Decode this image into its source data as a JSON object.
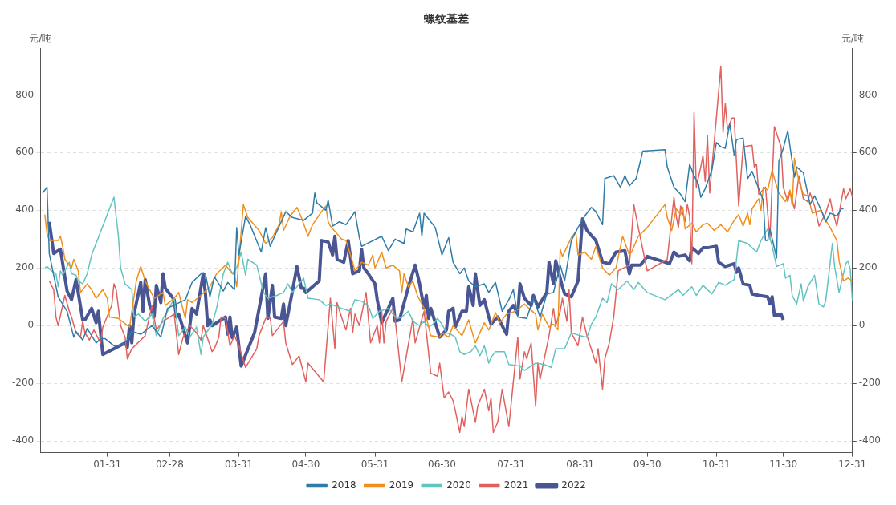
{
  "chart_data": {
    "type": "line",
    "title": "螺纹基差",
    "ylabel": "元/吨",
    "y2label": "元/吨",
    "xlim": [
      "--01-01",
      "--12-31"
    ],
    "xticks": [
      {
        "value": "--01-31",
        "label": "01-31"
      },
      {
        "value": "--02-28",
        "label": "02-28"
      },
      {
        "value": "--03-31",
        "label": "03-31"
      },
      {
        "value": "--04-30",
        "label": "04-30"
      },
      {
        "value": "--05-31",
        "label": "05-31"
      },
      {
        "value": "--06-30",
        "label": "06-30"
      },
      {
        "value": "--07-31",
        "label": "07-31"
      },
      {
        "value": "--08-31",
        "label": "08-31"
      },
      {
        "value": "--09-30",
        "label": "09-30"
      },
      {
        "value": "--10-31",
        "label": "10-31"
      },
      {
        "value": "--11-30",
        "label": "11-30"
      },
      {
        "value": "--12-31",
        "label": "12-31"
      }
    ],
    "ylim": [
      -440,
      960
    ],
    "yticks": [
      -400,
      -200,
      0,
      200,
      400,
      600,
      800
    ],
    "y2lim": [
      -440,
      960
    ],
    "y2ticks": [
      -400,
      -200,
      0,
      200,
      400,
      600,
      800
    ],
    "grid": "y",
    "legend": "bottom",
    "series": [
      {
        "name": "2018",
        "color": "#2f7ca8",
        "x": [
          "--01-02",
          "--01-04",
          "--01-05",
          "--01-09",
          "--01-13",
          "--01-16",
          "--01-17",
          "--01-20",
          "--01-22",
          "--01-26",
          "--01-28",
          "--01-30",
          "--02-03",
          "--02-06",
          "--02-09",
          "--02-11",
          "--02-15",
          "--02-20",
          "--02-24",
          "--02-27",
          "--03-07",
          "--03-10",
          "--03-14",
          "--03-16",
          "--03-18",
          "--03-20",
          "--03-24",
          "--03-26",
          "--03-29",
          "--03-30",
          "--03-31",
          "--04-03",
          "--04-05",
          "--04-10",
          "--04-12",
          "--04-14",
          "--04-21",
          "--04-24",
          "--04-29",
          "--05-03",
          "--05-04",
          "--05-05",
          "--05-09",
          "--05-10",
          "--05-12",
          "--05-15",
          "--05-18",
          "--05-22",
          "--05-24",
          "--05-25",
          "--06-03",
          "--06-06",
          "--06-09",
          "--06-13",
          "--06-14",
          "--06-17",
          "--06-20",
          "--06-21",
          "--06-22",
          "--06-27",
          "--06-30",
          "--07-03",
          "--07-05",
          "--07-08",
          "--07-10",
          "--07-12",
          "--07-15",
          "--07-19",
          "--07-21",
          "--07-24",
          "--07-27",
          "--07-30",
          "--08-01",
          "--08-03",
          "--08-07",
          "--08-10",
          "--08-13",
          "--08-16",
          "--08-19",
          "--08-22",
          "--08-24",
          "--08-27",
          "--08-30",
          "--09-02",
          "--09-05",
          "--09-07",
          "--09-10",
          "--09-11",
          "--09-15",
          "--09-18",
          "--09-20",
          "--09-22",
          "--09-25",
          "--09-26",
          "--09-28",
          "--10-08",
          "--10-09",
          "--10-12",
          "--10-15",
          "--10-17",
          "--10-19",
          "--10-21",
          "--10-23",
          "--10-24",
          "--10-26",
          "--10-29",
          "--10-31",
          "--11-02",
          "--11-04",
          "--11-06",
          "--11-08",
          "--11-09",
          "--11-12",
          "--11-14",
          "--11-16",
          "--11-21",
          "--11-22",
          "--11-23",
          "--11-24",
          "--11-27",
          "--11-28",
          "--11-30",
          "--12-02",
          "--12-05",
          "--12-06",
          "--12-09",
          "--12-12",
          "--12-14",
          "--12-17",
          "--12-19",
          "--12-21",
          "--12-24",
          "--12-26",
          "--12-27"
        ],
        "values": [
          460,
          480,
          250,
          100,
          50,
          -40,
          -20,
          -50,
          -10,
          -60,
          -45,
          -45,
          -70,
          -70,
          -50,
          -20,
          -30,
          0,
          -40,
          60,
          90,
          150,
          180,
          180,
          100,
          170,
          120,
          150,
          125,
          340,
          245,
          380,
          350,
          255,
          340,
          275,
          395,
          375,
          365,
          390,
          460,
          425,
          400,
          435,
          345,
          360,
          350,
          395,
          305,
          275,
          310,
          260,
          300,
          285,
          335,
          325,
          390,
          310,
          390,
          340,
          245,
          305,
          220,
          180,
          200,
          155,
          135,
          145,
          115,
          150,
          50,
          90,
          125,
          30,
          25,
          95,
          30,
          110,
          115,
          210,
          155,
          295,
          340,
          380,
          410,
          395,
          350,
          510,
          520,
          480,
          520,
          485,
          510,
          540,
          605,
          610,
          550,
          480,
          455,
          430,
          560,
          520,
          490,
          445,
          475,
          540,
          635,
          620,
          615,
          700,
          590,
          645,
          650,
          510,
          535,
          435,
          295,
          295,
          335,
          235,
          570,
          615,
          675,
          515,
          550,
          530,
          420,
          450,
          400,
          360,
          390,
          380,
          405,
          405
        ]
      },
      {
        "name": "2019",
        "color": "#f0901c",
        "x": [
          "--01-03",
          "--01-04",
          "--01-05",
          "--01-09",
          "--01-10",
          "--01-11",
          "--01-12",
          "--01-15",
          "--01-16",
          "--01-18",
          "--01-19",
          "--01-22",
          "--01-24",
          "--01-26",
          "--01-29",
          "--01-31",
          "--02-01",
          "--02-05",
          "--02-10",
          "--02-13",
          "--02-15",
          "--02-17",
          "--02-21",
          "--02-25",
          "--02-26",
          "--03-02",
          "--03-04",
          "--03-07",
          "--03-08",
          "--03-10",
          "--03-14",
          "--03-18",
          "--03-21",
          "--03-25",
          "--03-27",
          "--03-29",
          "--03-30",
          "--04-02",
          "--04-04",
          "--04-09",
          "--04-12",
          "--04-15",
          "--04-18",
          "--04-19",
          "--04-20",
          "--04-23",
          "--04-26",
          "--04-28",
          "--05-01",
          "--05-03",
          "--05-07",
          "--05-09",
          "--05-10",
          "--05-11",
          "--05-16",
          "--05-18",
          "--05-21",
          "--05-22",
          "--05-25",
          "--05-28",
          "--05-30",
          "--05-31",
          "--06-03",
          "--06-05",
          "--06-08",
          "--06-11",
          "--06-12",
          "--06-13",
          "--06-15",
          "--06-17",
          "--06-19",
          "--06-22",
          "--06-25",
          "--06-29",
          "--06-30",
          "--07-03",
          "--07-05",
          "--07-09",
          "--07-12",
          "--07-14",
          "--07-15",
          "--07-19",
          "--07-21",
          "--07-24",
          "--07-26",
          "--07-29",
          "--08-02",
          "--08-06",
          "--08-08",
          "--08-11",
          "--08-12",
          "--08-14",
          "--08-17",
          "--08-19",
          "--08-21",
          "--08-22",
          "--08-23",
          "--08-27",
          "--08-29",
          "--08-30",
          "--09-02",
          "--09-05",
          "--09-07",
          "--09-10",
          "--09-13",
          "--09-16",
          "--09-19",
          "--09-22",
          "--09-23",
          "--09-26",
          "--09-30",
          "--10-08",
          "--10-09",
          "--10-11",
          "--10-13",
          "--10-15",
          "--10-16",
          "--10-17",
          "--10-20",
          "--10-22",
          "--10-25",
          "--10-27",
          "--10-30",
          "--11-02",
          "--11-05",
          "--11-08",
          "--11-10",
          "--11-12",
          "--11-14",
          "--11-15",
          "--11-16",
          "--11-19",
          "--11-20",
          "--11-21",
          "--11-23",
          "--11-25",
          "--11-26",
          "--11-28",
          "--12-01",
          "--12-03",
          "--12-04",
          "--12-05",
          "--12-07",
          "--12-09",
          "--12-11",
          "--12-13",
          "--12-17",
          "--12-19",
          "--12-21",
          "--12-24",
          "--12-25",
          "--12-27",
          "--12-29",
          "--12-31"
        ],
        "values": [
          385,
          320,
          295,
          295,
          310,
          275,
          230,
          200,
          230,
          190,
          115,
          145,
          125,
          95,
          125,
          95,
          30,
          25,
          -5,
          155,
          205,
          155,
          95,
          115,
          70,
          95,
          115,
          25,
          90,
          80,
          105,
          135,
          180,
          210,
          190,
          175,
          135,
          420,
          375,
          330,
          285,
          305,
          350,
          395,
          330,
          380,
          410,
          375,
          310,
          350,
          395,
          415,
          360,
          345,
          300,
          295,
          220,
          190,
          220,
          210,
          245,
          200,
          255,
          200,
          210,
          190,
          115,
          180,
          135,
          155,
          105,
          60,
          -35,
          -40,
          -25,
          -40,
          0,
          -35,
          20,
          -35,
          -60,
          10,
          -15,
          45,
          10,
          40,
          50,
          75,
          60,
          40,
          -15,
          40,
          -5,
          5,
          -15,
          265,
          240,
          305,
          325,
          245,
          255,
          230,
          275,
          200,
          175,
          200,
          310,
          245,
          255,
          310,
          340,
          420,
          375,
          330,
          405,
          385,
          410,
          335,
          355,
          325,
          350,
          355,
          330,
          350,
          325,
          365,
          385,
          345,
          390,
          350,
          405,
          440,
          400,
          480,
          470,
          540,
          510,
          460,
          430,
          470,
          415,
          580,
          500,
          455,
          450,
          390,
          400,
          365,
          340,
          295,
          225,
          155,
          165,
          155
        ]
      },
      {
        "name": "2020",
        "color": "#62c4c0",
        "x": [
          "--01-03",
          "--01-04",
          "--01-06",
          "--01-08",
          "--01-09",
          "--01-10",
          "--01-11",
          "--01-14",
          "--01-15",
          "--01-17",
          "--01-18",
          "--01-20",
          "--01-22",
          "--01-24",
          "--02-03",
          "--02-05",
          "--02-06",
          "--02-08",
          "--02-11",
          "--02-12",
          "--02-14",
          "--02-17",
          "--02-20",
          "--02-22",
          "--02-25",
          "--02-27",
          "--03-02",
          "--03-04",
          "--03-07",
          "--03-09",
          "--03-12",
          "--03-14",
          "--03-15",
          "--03-19",
          "--03-21",
          "--03-24",
          "--03-26",
          "--03-28",
          "--03-30",
          "--04-01",
          "--04-03",
          "--04-04",
          "--04-08",
          "--04-11",
          "--04-13",
          "--04-17",
          "--04-20",
          "--04-22",
          "--04-24",
          "--04-29",
          "--05-01",
          "--05-06",
          "--05-09",
          "--05-11",
          "--05-16",
          "--05-20",
          "--05-22",
          "--05-25",
          "--05-28",
          "--05-30",
          "--06-02",
          "--06-06",
          "--06-08",
          "--06-10",
          "--06-12",
          "--06-15",
          "--06-17",
          "--06-20",
          "--06-22",
          "--06-24",
          "--06-26",
          "--06-28",
          "--06-30",
          "--07-02",
          "--07-04",
          "--07-06",
          "--07-08",
          "--07-10",
          "--07-13",
          "--07-15",
          "--07-17",
          "--07-19",
          "--07-21",
          "--07-22",
          "--07-24",
          "--07-28",
          "--07-30",
          "--08-04",
          "--08-06",
          "--08-09",
          "--08-11",
          "--08-15",
          "--08-18",
          "--08-20",
          "--08-24",
          "--08-27",
          "--08-31",
          "--09-03",
          "--09-05",
          "--09-07",
          "--09-10",
          "--09-12",
          "--09-14",
          "--09-17",
          "--09-21",
          "--09-24",
          "--09-26",
          "--09-30",
          "--10-08",
          "--10-14",
          "--10-16",
          "--10-20",
          "--10-22",
          "--10-25",
          "--10-29",
          "--11-01",
          "--11-04",
          "--11-08",
          "--11-10",
          "--11-14",
          "--11-16",
          "--11-18",
          "--11-20",
          "--11-23",
          "--11-25",
          "--11-27",
          "--11-30",
          "--12-01",
          "--12-03",
          "--12-04",
          "--12-06",
          "--12-08",
          "--12-09",
          "--12-11",
          "--12-14",
          "--12-16",
          "--12-18",
          "--12-19",
          "--12-22",
          "--12-23",
          "--12-25",
          "--12-28",
          "--12-29",
          "--12-30",
          "--12-31"
        ],
        "values": [
          200,
          205,
          190,
          180,
          135,
          190,
          175,
          220,
          180,
          175,
          155,
          145,
          180,
          245,
          445,
          310,
          200,
          145,
          125,
          30,
          40,
          15,
          40,
          -35,
          25,
          50,
          95,
          -35,
          -5,
          -40,
          -5,
          -100,
          -40,
          5,
          60,
          180,
          220,
          180,
          200,
          255,
          175,
          230,
          210,
          115,
          95,
          105,
          115,
          145,
          115,
          165,
          95,
          90,
          70,
          75,
          60,
          50,
          90,
          85,
          70,
          25,
          50,
          60,
          40,
          25,
          30,
          50,
          15,
          0,
          15,
          -5,
          5,
          25,
          5,
          -25,
          -30,
          -40,
          -90,
          -100,
          -90,
          -70,
          -105,
          -70,
          -130,
          -110,
          -90,
          -90,
          -135,
          -140,
          -155,
          -140,
          -130,
          -135,
          -145,
          -80,
          -80,
          -25,
          -35,
          -40,
          5,
          30,
          95,
          80,
          145,
          125,
          155,
          125,
          150,
          115,
          90,
          125,
          105,
          135,
          105,
          140,
          110,
          150,
          140,
          160,
          295,
          285,
          270,
          255,
          295,
          335,
          275,
          205,
          215,
          165,
          175,
          105,
          75,
          145,
          85,
          135,
          175,
          75,
          65,
          85,
          285,
          205,
          115,
          215,
          225,
          195,
          85
        ]
      },
      {
        "name": "2021",
        "color": "#e0615e",
        "x": [
          "--01-05",
          "--01-07",
          "--01-08",
          "--01-09",
          "--01-11",
          "--01-12",
          "--01-14",
          "--01-15",
          "--01-17",
          "--01-19",
          "--01-20",
          "--01-21",
          "--01-23",
          "--01-25",
          "--01-28",
          "--01-29",
          "--02-02",
          "--02-03",
          "--02-04",
          "--02-06",
          "--02-08",
          "--02-09",
          "--02-11",
          "--02-17",
          "--02-20",
          "--02-22",
          "--02-25",
          "--03-02",
          "--03-04",
          "--03-05",
          "--03-06",
          "--03-09",
          "--03-12",
          "--03-14",
          "--03-15",
          "--03-19",
          "--03-20",
          "--03-22",
          "--03-23",
          "--03-25",
          "--03-27",
          "--03-29",
          "--03-31",
          "--04-03",
          "--04-08",
          "--04-09",
          "--04-12",
          "--04-14",
          "--04-15",
          "--04-17",
          "--04-20",
          "--04-21",
          "--04-24",
          "--04-27",
          "--04-28",
          "--04-30",
          "--05-01",
          "--05-08",
          "--05-11",
          "--05-13",
          "--05-14",
          "--05-16",
          "--05-18",
          "--05-20",
          "--05-21",
          "--05-22",
          "--05-24",
          "--05-27",
          "--05-29",
          "--06-01",
          "--06-02",
          "--06-03",
          "--06-04",
          "--06-05",
          "--06-08",
          "--06-09",
          "--06-12",
          "--06-17",
          "--06-18",
          "--06-22",
          "--06-25",
          "--06-28",
          "--06-29",
          "--07-01",
          "--07-03",
          "--07-05",
          "--07-06",
          "--07-08",
          "--07-09",
          "--07-10",
          "--07-12",
          "--07-15",
          "--07-16",
          "--07-19",
          "--07-21",
          "--07-22",
          "--07-23",
          "--07-25",
          "--07-27",
          "--07-30",
          "--08-03",
          "--08-04",
          "--08-06",
          "--08-07",
          "--08-09",
          "--08-11",
          "--08-12",
          "--08-13",
          "--08-17",
          "--08-19",
          "--08-20",
          "--08-22",
          "--08-23",
          "--08-25",
          "--08-26",
          "--08-27",
          "--08-30",
          "--09-01",
          "--09-03",
          "--09-07",
          "--09-08",
          "--09-10",
          "--09-11",
          "--09-13",
          "--09-15",
          "--09-17",
          "--09-22",
          "--09-24",
          "--09-26",
          "--09-30",
          "--10-09",
          "--10-12",
          "--10-13",
          "--10-14",
          "--10-15",
          "--10-17",
          "--10-18",
          "--10-19",
          "--10-20",
          "--10-21",
          "--10-22",
          "--10-24",
          "--10-25",
          "--10-26",
          "--10-27",
          "--10-28",
          "--10-29",
          "--10-31",
          "--11-02",
          "--11-03",
          "--11-04",
          "--11-05",
          "--11-07",
          "--11-08",
          "--11-10",
          "--11-12",
          "--11-16",
          "--11-17",
          "--11-18",
          "--11-19",
          "--11-22",
          "--11-24",
          "--11-26",
          "--11-29",
          "--11-30",
          "--12-02",
          "--12-03",
          "--12-05",
          "--12-07",
          "--12-09",
          "--12-11",
          "--12-12",
          "--12-14",
          "--12-16",
          "--12-19",
          "--12-21",
          "--12-22",
          "--12-24",
          "--12-27",
          "--12-28",
          "--12-30",
          "--12-31"
        ],
        "values": [
          155,
          125,
          30,
          0,
          70,
          105,
          50,
          30,
          -25,
          -40,
          15,
          -25,
          -50,
          -15,
          -60,
          -5,
          70,
          145,
          125,
          0,
          -40,
          -115,
          -80,
          -35,
          70,
          -15,
          15,
          40,
          -100,
          -70,
          -40,
          0,
          -25,
          -50,
          0,
          -90,
          -80,
          -40,
          30,
          25,
          -70,
          -35,
          -70,
          -145,
          -80,
          -35,
          25,
          30,
          -35,
          -15,
          15,
          -60,
          -135,
          -105,
          -135,
          -195,
          -130,
          -195,
          95,
          -80,
          80,
          30,
          -15,
          60,
          -25,
          40,
          0,
          115,
          -60,
          0,
          -60,
          50,
          -60,
          15,
          60,
          25,
          -195,
          25,
          -60,
          50,
          -165,
          -175,
          -130,
          -250,
          -230,
          -260,
          -295,
          -370,
          -315,
          -350,
          -220,
          -335,
          -280,
          -220,
          -295,
          -250,
          -370,
          -335,
          -220,
          -350,
          -40,
          -185,
          -90,
          -115,
          -60,
          -280,
          -130,
          -185,
          -35,
          60,
          0,
          50,
          95,
          15,
          125,
          -25,
          -70,
          30,
          -35,
          -130,
          -80,
          -220,
          -115,
          -60,
          30,
          190,
          210,
          420,
          340,
          190,
          230,
          445,
          380,
          340,
          415,
          360,
          420,
          380,
          215,
          740,
          480,
          550,
          590,
          500,
          660,
          460,
          550,
          720,
          900,
          670,
          770,
          680,
          720,
          720,
          415,
          620,
          625,
          550,
          560,
          455,
          480,
          300,
          690,
          620,
          480,
          430,
          465,
          405,
          520,
          440,
          430,
          460,
          415,
          345,
          390,
          440,
          400,
          345,
          475,
          440,
          475,
          445
        ]
      },
      {
        "name": "2022",
        "color": "#4a5694",
        "x": [
          "--01-05",
          "--01-07",
          "--01-10",
          "--01-13",
          "--01-15",
          "--01-17",
          "--01-20",
          "--01-21",
          "--01-24",
          "--01-26",
          "--01-27",
          "--01-29",
          "--02-08",
          "--02-09",
          "--02-10",
          "--02-11",
          "--02-12",
          "--02-15",
          "--02-16",
          "--02-17",
          "--02-19",
          "--02-21",
          "--02-22",
          "--02-24",
          "--02-25",
          "--02-26",
          "--03-02",
          "--03-03",
          "--03-04",
          "--03-08",
          "--03-10",
          "--03-12",
          "--03-15",
          "--03-16",
          "--03-17",
          "--03-18",
          "--03-19",
          "--03-25",
          "--03-26",
          "--03-27",
          "--03-28",
          "--03-30",
          "--04-01",
          "--04-07",
          "--04-12",
          "--04-13",
          "--04-15",
          "--04-16",
          "--04-19",
          "--04-20",
          "--04-21",
          "--04-24",
          "--04-26",
          "--04-28",
          "--04-29",
          "--04-30",
          "--05-06",
          "--05-07",
          "--05-10",
          "--05-12",
          "--05-13",
          "--05-14",
          "--05-17",
          "--05-19",
          "--05-21",
          "--05-24",
          "--05-25",
          "--05-26",
          "--05-28",
          "--05-31",
          "--06-01",
          "--06-03",
          "--06-08",
          "--06-09",
          "--06-11",
          "--06-15",
          "--06-18",
          "--06-20",
          "--06-22",
          "--06-23",
          "--06-24",
          "--06-25",
          "--06-29",
          "--07-02",
          "--07-03",
          "--07-05",
          "--07-06",
          "--07-09",
          "--07-11",
          "--07-12",
          "--07-14",
          "--07-15",
          "--07-17",
          "--07-19",
          "--07-21",
          "--07-22",
          "--07-25",
          "--07-29",
          "--07-30",
          "--08-01",
          "--08-03",
          "--08-04",
          "--08-06",
          "--08-09",
          "--08-10",
          "--08-12",
          "--08-16",
          "--08-17",
          "--08-19",
          "--08-20",
          "--08-23",
          "--08-24",
          "--08-27",
          "--08-30",
          "--09-01",
          "--09-03",
          "--09-07",
          "--09-10",
          "--09-13",
          "--09-16",
          "--09-20",
          "--09-22",
          "--09-23",
          "--09-27",
          "--09-30",
          "--10-10",
          "--10-12",
          "--10-14",
          "--10-17",
          "--10-19",
          "--10-20",
          "--10-23",
          "--10-25",
          "--10-27",
          "--10-31",
          "--11-01",
          "--11-04",
          "--11-08",
          "--11-09",
          "--11-10",
          "--11-12",
          "--11-15",
          "--11-16",
          "--11-19",
          "--11-23",
          "--11-24",
          "--11-25",
          "--11-26",
          "--11-29",
          "--11-30"
        ],
        "values": [
          360,
          250,
          265,
          120,
          90,
          160,
          20,
          20,
          60,
          10,
          50,
          -100,
          -60,
          -75,
          0,
          -60,
          40,
          150,
          50,
          160,
          70,
          30,
          140,
          80,
          180,
          130,
          90,
          30,
          40,
          -60,
          60,
          40,
          180,
          110,
          0,
          20,
          0,
          30,
          -30,
          30,
          -42,
          -5,
          -140,
          -25,
          180,
          25,
          140,
          30,
          25,
          75,
          0,
          120,
          205,
          130,
          130,
          115,
          155,
          295,
          290,
          245,
          310,
          230,
          220,
          295,
          180,
          190,
          265,
          200,
          180,
          145,
          90,
          10,
          95,
          15,
          20,
          135,
          210,
          145,
          60,
          105,
          25,
          60,
          -40,
          -15,
          50,
          60,
          -5,
          50,
          50,
          135,
          70,
          180,
          70,
          90,
          30,
          5,
          30,
          -30,
          50,
          70,
          40,
          145,
          95,
          70,
          105,
          65,
          115,
          220,
          145,
          225,
          135,
          110,
          100,
          155,
          370,
          330,
          295,
          220,
          215,
          255,
          260,
          180,
          210,
          210,
          240,
          215,
          255,
          240,
          245,
          225,
          270,
          250,
          270,
          270,
          275,
          220,
          205,
          215,
          185,
          200,
          145,
          140,
          110,
          105,
          100,
          75,
          100,
          35,
          40,
          20
        ]
      }
    ]
  }
}
